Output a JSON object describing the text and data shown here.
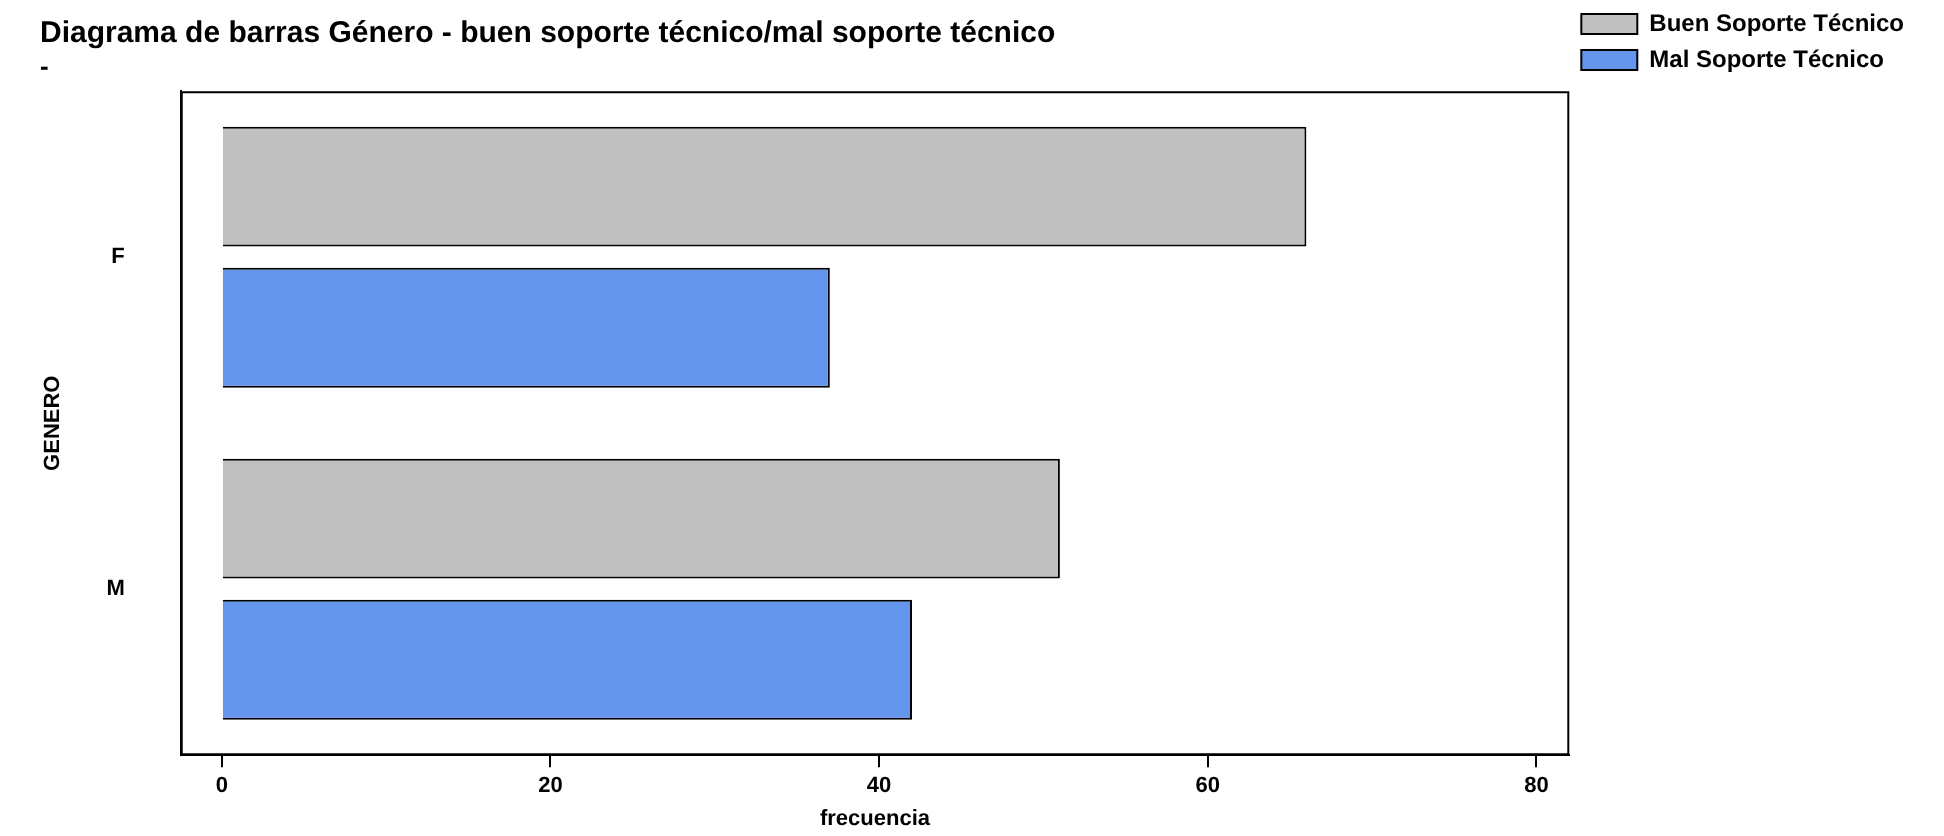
{
  "chart_data": {
    "type": "bar",
    "orientation": "horizontal",
    "title": "Diagrama de barras Género - buen soporte técnico/mal soporte técnico",
    "subtitle": "-",
    "xlabel": "frecuencia",
    "ylabel": "GENERO",
    "categories": [
      "F",
      "M"
    ],
    "series": [
      {
        "name": "Buen Soporte Técnico",
        "color": "#c0c0c0",
        "values": [
          66,
          51
        ]
      },
      {
        "name": "Mal Soporte Técnico",
        "color": "#6495ed",
        "values": [
          37,
          42
        ]
      }
    ],
    "xlim": [
      -2.5,
      82
    ],
    "xticks": [
      0,
      20,
      40,
      60,
      80
    ],
    "grid": false,
    "legend": "top right"
  }
}
